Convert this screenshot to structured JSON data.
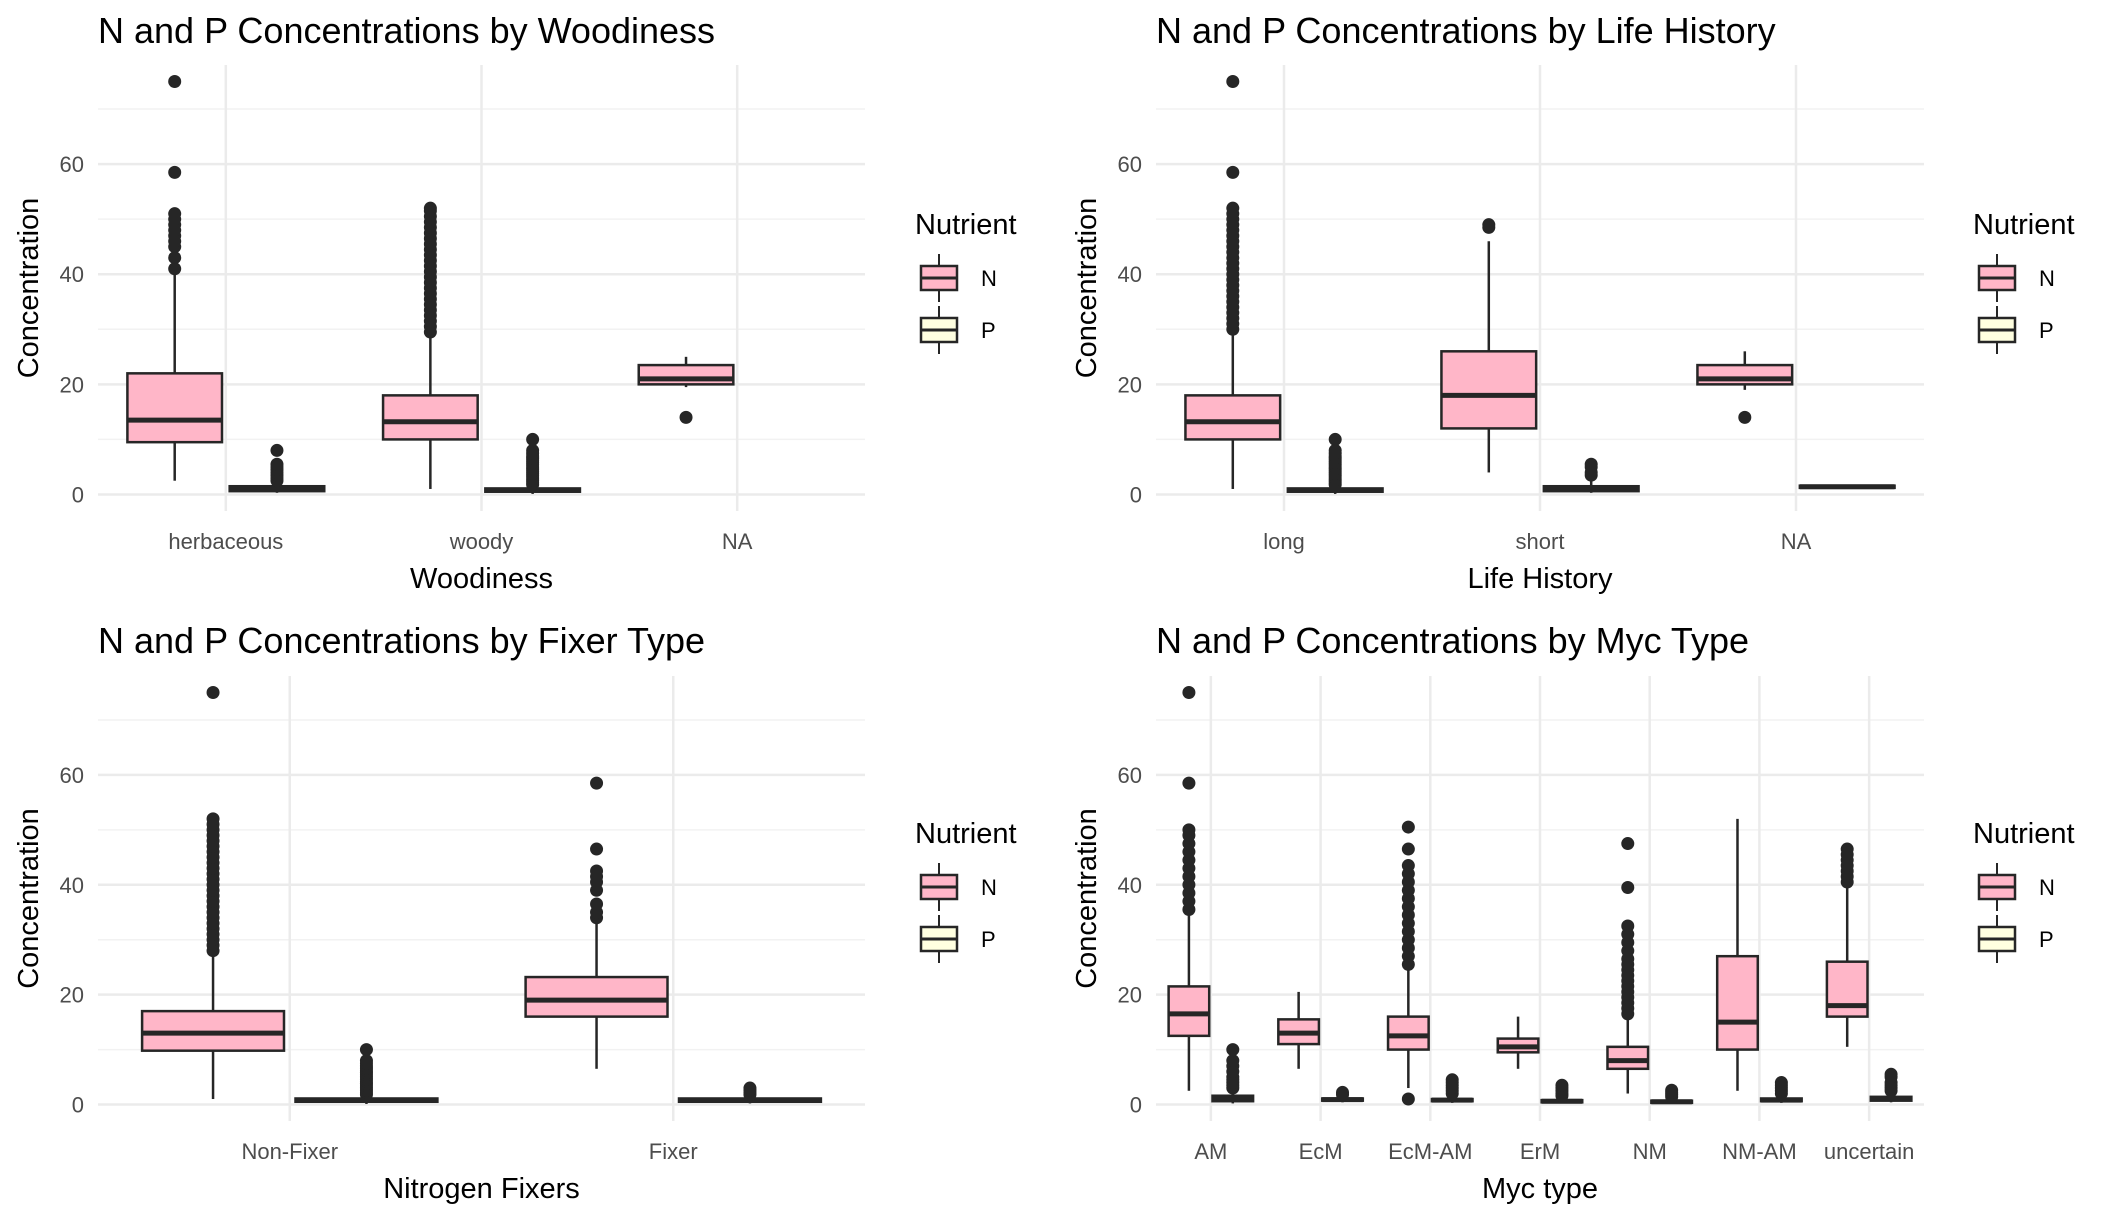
{
  "legend": {
    "title": "Nutrient",
    "items": [
      {
        "label": "N",
        "color": "#FFB6C8"
      },
      {
        "label": "P",
        "color": "#FFFFE0"
      }
    ]
  },
  "colors": {
    "N": "#FFB6C8",
    "P": "#FFFFE0",
    "line": "#262626",
    "grid": "#ebebeb"
  },
  "chart_data": [
    {
      "type": "box",
      "title": "N and P Concentrations by Woodiness",
      "xlabel": "Woodiness",
      "ylabel": "Concentration",
      "ylim": [
        -3,
        78
      ],
      "yticks": [
        0,
        20,
        40,
        60
      ],
      "categories": [
        "herbaceous",
        "woody",
        "NA"
      ],
      "boxes": [
        {
          "category": "herbaceous",
          "nutrient": "N",
          "whisker_low": 2.5,
          "q1": 9.5,
          "median": 13.5,
          "q3": 22,
          "whisker_high": 40.5,
          "outliers": [
            41,
            43,
            45,
            46,
            47,
            48,
            49,
            50,
            51,
            58.5,
            75
          ]
        },
        {
          "category": "herbaceous",
          "nutrient": "P",
          "whisker_low": 0.3,
          "q1": 0.6,
          "median": 1,
          "q3": 1.5,
          "whisker_high": 2.2,
          "outliers": [
            2.5,
            3,
            3.5,
            4,
            4.5,
            5,
            5.5,
            8
          ]
        },
        {
          "category": "woody",
          "nutrient": "N",
          "whisker_low": 1,
          "q1": 10,
          "median": 13.2,
          "q3": 18,
          "whisker_high": 29,
          "outliers": [
            29.5,
            30.5,
            31.5,
            32.5,
            33.5,
            34.5,
            35.5,
            36.5,
            37.5,
            38.5,
            39.5,
            40.5,
            41.5,
            42.5,
            43.5,
            44.5,
            45.5,
            46.5,
            47.5,
            48.5,
            49.5,
            50.5,
            51.5,
            52
          ]
        },
        {
          "category": "woody",
          "nutrient": "P",
          "whisker_low": 0.1,
          "q1": 0.5,
          "median": 0.8,
          "q3": 1.1,
          "whisker_high": 1.6,
          "outliers": [
            1.8,
            2.2,
            2.6,
            3,
            3.4,
            3.8,
            4.2,
            4.6,
            5,
            5.4,
            5.8,
            6.2,
            6.6,
            7,
            7.5,
            8,
            10
          ]
        },
        {
          "category": "NA",
          "nutrient": "N",
          "whisker_low": 19.5,
          "q1": 20,
          "median": 21,
          "q3": 23.5,
          "whisker_high": 25,
          "outliers": [
            14
          ]
        }
      ]
    },
    {
      "type": "box",
      "title": "N and P Concentrations by Life History",
      "xlabel": "Life History",
      "ylabel": "Concentration",
      "ylim": [
        -3,
        78
      ],
      "yticks": [
        0,
        20,
        40,
        60
      ],
      "categories": [
        "long",
        "short",
        "NA"
      ],
      "boxes": [
        {
          "category": "long",
          "nutrient": "N",
          "whisker_low": 1,
          "q1": 10,
          "median": 13.2,
          "q3": 18,
          "whisker_high": 29.5,
          "outliers": [
            30,
            31,
            32,
            33,
            34,
            35,
            36,
            37,
            38,
            39,
            40,
            41,
            42,
            43,
            44,
            45,
            46,
            47,
            48,
            49,
            50,
            51,
            52,
            58.5,
            75
          ]
        },
        {
          "category": "long",
          "nutrient": "P",
          "whisker_low": 0.1,
          "q1": 0.5,
          "median": 0.8,
          "q3": 1.1,
          "whisker_high": 1.6,
          "outliers": [
            1.8,
            2.2,
            2.6,
            3,
            3.4,
            3.8,
            4.2,
            4.6,
            5,
            5.4,
            5.8,
            6.2,
            6.6,
            7,
            7.5,
            8,
            10
          ]
        },
        {
          "category": "short",
          "nutrient": "N",
          "whisker_low": 4,
          "q1": 12,
          "median": 18,
          "q3": 26,
          "whisker_high": 46,
          "outliers": [
            48.5,
            49
          ]
        },
        {
          "category": "short",
          "nutrient": "P",
          "whisker_low": 0.3,
          "q1": 0.6,
          "median": 1,
          "q3": 1.5,
          "whisker_high": 2.5,
          "outliers": [
            3.5,
            4,
            5,
            5.5
          ]
        },
        {
          "category": "NA",
          "nutrient": "N",
          "whisker_low": 19,
          "q1": 20,
          "median": 21,
          "q3": 23.5,
          "whisker_high": 26,
          "outliers": [
            14
          ]
        },
        {
          "category": "NA",
          "nutrient": "P",
          "whisker_low": 1.2,
          "q1": 1.2,
          "median": 1.4,
          "q3": 1.6,
          "whisker_high": 1.6,
          "outliers": []
        }
      ]
    },
    {
      "type": "box",
      "title": "N and P Concentrations by Fixer Type",
      "xlabel": "Nitrogen Fixers",
      "ylabel": "Concentration",
      "ylim": [
        -3,
        78
      ],
      "yticks": [
        0,
        20,
        40,
        60
      ],
      "categories": [
        "Non-Fixer",
        "Fixer"
      ],
      "boxes": [
        {
          "category": "Non-Fixer",
          "nutrient": "N",
          "whisker_low": 1,
          "q1": 9.8,
          "median": 13,
          "q3": 17,
          "whisker_high": 27.5,
          "outliers": [
            28,
            29,
            30,
            31,
            32,
            33,
            34,
            35,
            36,
            37,
            38,
            39,
            40,
            41,
            42,
            43,
            44,
            45,
            46,
            47,
            48,
            49,
            50,
            51,
            52,
            75
          ]
        },
        {
          "category": "Non-Fixer",
          "nutrient": "P",
          "whisker_low": 0.1,
          "q1": 0.5,
          "median": 0.8,
          "q3": 1.1,
          "whisker_high": 1.6,
          "outliers": [
            1.8,
            2.2,
            2.6,
            3,
            3.4,
            3.8,
            4.2,
            4.6,
            5,
            5.4,
            5.8,
            6.2,
            6.6,
            7,
            7.5,
            8,
            10
          ]
        },
        {
          "category": "Fixer",
          "nutrient": "N",
          "whisker_low": 6.5,
          "q1": 16,
          "median": 19,
          "q3": 23.2,
          "whisker_high": 33,
          "outliers": [
            34,
            35,
            36.5,
            39,
            40.5,
            41.5,
            42.5,
            46.5,
            58.5
          ]
        },
        {
          "category": "Fixer",
          "nutrient": "P",
          "whisker_low": 0.2,
          "q1": 0.5,
          "median": 0.8,
          "q3": 1.1,
          "whisker_high": 1.5,
          "outliers": [
            1.8,
            2.2,
            2.6,
            3
          ]
        }
      ]
    },
    {
      "type": "box",
      "title": "N and P Concentrations by Myc Type",
      "xlabel": "Myc type",
      "ylabel": "Concentration",
      "ylim": [
        -3,
        78
      ],
      "yticks": [
        0,
        20,
        40,
        60
      ],
      "categories": [
        "AM",
        "EcM",
        "EcM-AM",
        "ErM",
        "NM",
        "NM-AM",
        "uncertain"
      ],
      "boxes": [
        {
          "category": "AM",
          "nutrient": "N",
          "whisker_low": 2.5,
          "q1": 12.5,
          "median": 16.5,
          "q3": 21.5,
          "whisker_high": 34.5,
          "outliers": [
            35.5,
            37,
            38.5,
            40,
            41.5,
            43,
            44.5,
            46,
            47.5,
            49,
            50,
            58.5,
            75
          ]
        },
        {
          "category": "AM",
          "nutrient": "P",
          "whisker_low": 0.2,
          "q1": 0.6,
          "median": 1,
          "q3": 1.6,
          "whisker_high": 2.5,
          "outliers": [
            3,
            3.5,
            4,
            4.5,
            5,
            6,
            7,
            8,
            10
          ]
        },
        {
          "category": "EcM",
          "nutrient": "N",
          "whisker_low": 6.5,
          "q1": 11,
          "median": 13,
          "q3": 15.5,
          "whisker_high": 20.5,
          "outliers": []
        },
        {
          "category": "EcM",
          "nutrient": "P",
          "whisker_low": 0.4,
          "q1": 0.7,
          "median": 0.9,
          "q3": 1.1,
          "whisker_high": 1.4,
          "outliers": [
            1.8,
            2.2
          ]
        },
        {
          "category": "EcM-AM",
          "nutrient": "N",
          "whisker_low": 3,
          "q1": 10,
          "median": 12.5,
          "q3": 16,
          "whisker_high": 24.5,
          "outliers": [
            1,
            25.5,
            27,
            28.5,
            30,
            31.5,
            33,
            34.5,
            36,
            37.5,
            39,
            40.5,
            42,
            43.5,
            46.5,
            50.5
          ]
        },
        {
          "category": "EcM-AM",
          "nutrient": "P",
          "whisker_low": 0.3,
          "q1": 0.6,
          "median": 0.8,
          "q3": 1,
          "whisker_high": 1.5,
          "outliers": [
            2,
            2.5,
            3,
            3.5,
            4,
            4.5
          ]
        },
        {
          "category": "ErM",
          "nutrient": "N",
          "whisker_low": 6.5,
          "q1": 9.5,
          "median": 10.5,
          "q3": 12,
          "whisker_high": 16,
          "outliers": []
        },
        {
          "category": "ErM",
          "nutrient": "P",
          "whisker_low": 0.2,
          "q1": 0.4,
          "median": 0.6,
          "q3": 0.8,
          "whisker_high": 1.2,
          "outliers": [
            1.6,
            2,
            2.5,
            3,
            3.5
          ]
        },
        {
          "category": "NM",
          "nutrient": "N",
          "whisker_low": 2,
          "q1": 6.5,
          "median": 8,
          "q3": 10.5,
          "whisker_high": 15.5,
          "outliers": [
            16.5,
            17.5,
            18.5,
            19.5,
            20.5,
            21.5,
            22.5,
            23.5,
            24.5,
            25.5,
            26.5,
            28,
            29.5,
            31,
            32.5,
            39.5,
            47.5
          ]
        },
        {
          "category": "NM",
          "nutrient": "P",
          "whisker_low": 0.1,
          "q1": 0.3,
          "median": 0.5,
          "q3": 0.7,
          "whisker_high": 1,
          "outliers": [
            1.4,
            1.8,
            2.2,
            2.6
          ]
        },
        {
          "category": "NM-AM",
          "nutrient": "N",
          "whisker_low": 2.5,
          "q1": 10,
          "median": 15,
          "q3": 27,
          "whisker_high": 52,
          "outliers": []
        },
        {
          "category": "NM-AM",
          "nutrient": "P",
          "whisker_low": 0.3,
          "q1": 0.6,
          "median": 0.8,
          "q3": 1.1,
          "whisker_high": 1.6,
          "outliers": [
            2,
            2.5,
            3,
            3.5,
            4
          ]
        },
        {
          "category": "uncertain",
          "nutrient": "N",
          "whisker_low": 10.5,
          "q1": 16,
          "median": 18,
          "q3": 26,
          "whisker_high": 39.5,
          "outliers": [
            40.5,
            41.5,
            42.5,
            43.5,
            44.5,
            45.5,
            46.5
          ]
        },
        {
          "category": "uncertain",
          "nutrient": "P",
          "whisker_low": 0.4,
          "q1": 0.7,
          "median": 1,
          "q3": 1.4,
          "whisker_high": 2,
          "outliers": [
            2.5,
            3,
            3.5,
            4,
            5,
            5.5
          ]
        }
      ]
    }
  ]
}
